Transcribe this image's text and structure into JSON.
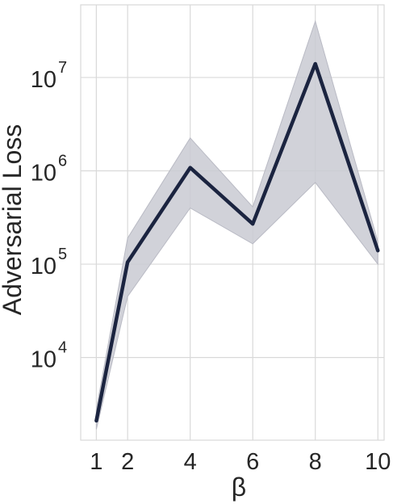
{
  "chart_data": {
    "type": "line",
    "title": "",
    "xlabel": "β",
    "ylabel": "Adversarial Loss",
    "x": [
      1,
      2,
      4,
      6,
      8,
      10
    ],
    "xticks": [
      "1",
      "2",
      "4",
      "6",
      "8",
      "10"
    ],
    "yscale": "log",
    "yticks": [
      {
        "value": 10000,
        "base": "10",
        "exp": "4"
      },
      {
        "value": 100000,
        "base": "10",
        "exp": "5"
      },
      {
        "value": 1000000,
        "base": "10",
        "exp": "6"
      },
      {
        "value": 10000000,
        "base": "10",
        "exp": "7"
      }
    ],
    "xlim": [
      0.5,
      10.2
    ],
    "ylim": [
      1300,
      60000000
    ],
    "grid": true,
    "series": [
      {
        "values": [
          2100,
          105000,
          1080000,
          270000,
          14000000,
          140000
        ],
        "lower": [
          1700,
          45000,
          400000,
          165000,
          750000,
          100000
        ],
        "upper": [
          2800,
          190000,
          2250000,
          410000,
          40000000,
          175000
        ],
        "color": "#1b2440",
        "band_color": "#c9cad2"
      }
    ],
    "colors": {
      "grid": "#d9d9d9",
      "line": "#1b2440",
      "band": "#c9cad2",
      "text": "#262626"
    }
  }
}
